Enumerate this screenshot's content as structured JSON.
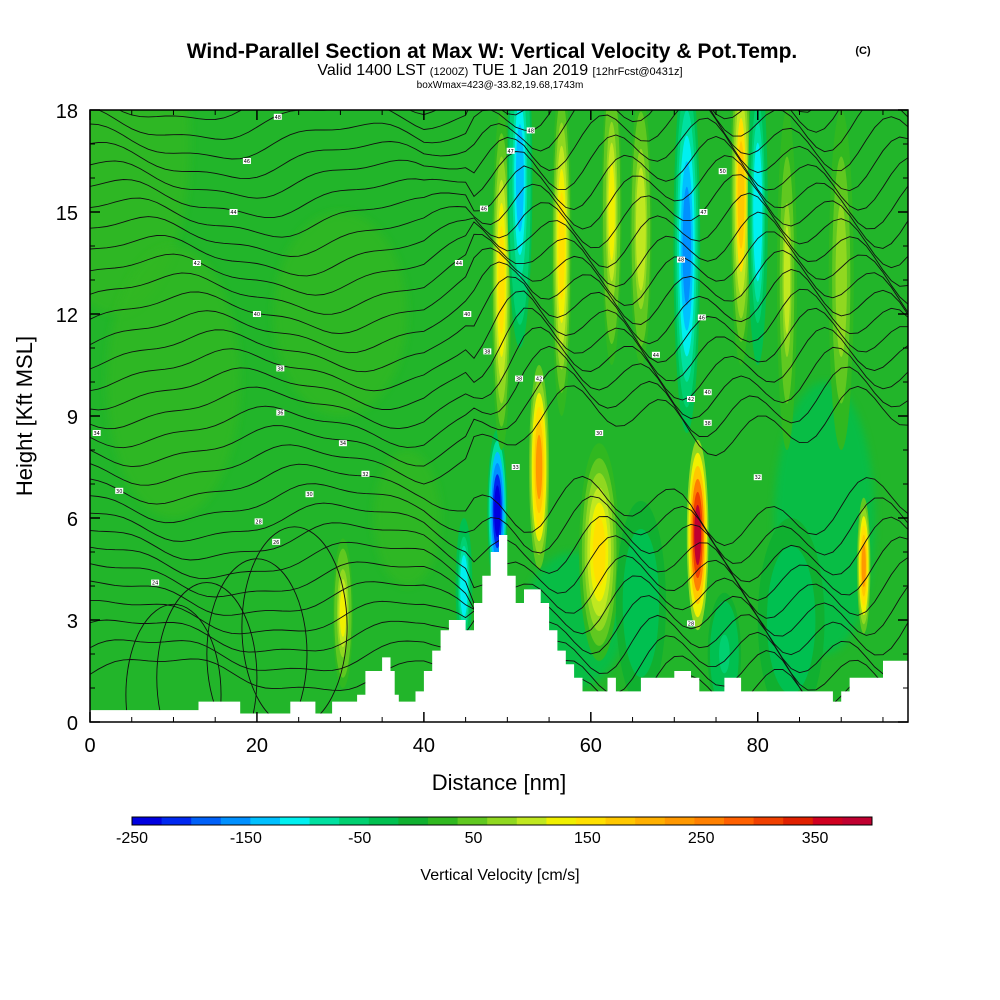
{
  "chart_data": {
    "type": "heatmap",
    "title": "Wind-Parallel Section at Max W: Vertical Velocity & Pot.Temp.",
    "title_suffix": "(C)",
    "subtitle_parts": [
      "Valid 1400 LST",
      "(1200Z)",
      "TUE 1 Jan 2019",
      "[12hrFcst@0431z]"
    ],
    "subsubtitle": "boxWmax=423@-33.82,19.68,1743m",
    "xlabel": "Distance [nm]",
    "ylabel": "Height [Kft MSL]",
    "xlim": [
      0,
      98
    ],
    "ylim": [
      0,
      18
    ],
    "x_ticks": [
      0,
      20,
      40,
      60,
      80
    ],
    "y_ticks": [
      0,
      3,
      6,
      9,
      12,
      15,
      18
    ],
    "colorbar": {
      "label": "Vertical Velocity [cm/s]",
      "min": -250,
      "max": 400,
      "tick_labels": [
        "-250",
        "-150",
        "-50",
        "50",
        "150",
        "250",
        "350"
      ],
      "colors": [
        "#0000e0",
        "#0028f0",
        "#0060f8",
        "#0090ff",
        "#00c0ff",
        "#00f0f0",
        "#00e0a0",
        "#00d070",
        "#00c050",
        "#10b030",
        "#30b820",
        "#60c820",
        "#90d820",
        "#c0e820",
        "#f0f000",
        "#ffe000",
        "#ffc800",
        "#ffb000",
        "#ff9800",
        "#ff8000",
        "#ff6000",
        "#f04000",
        "#e02000",
        "#d00020",
        "#c00030"
      ]
    },
    "terrain": [
      [
        0,
        0.35
      ],
      [
        10,
        0.35
      ],
      [
        13,
        0.35
      ],
      [
        13,
        0.6
      ],
      [
        18,
        0.6
      ],
      [
        18,
        0.25
      ],
      [
        24,
        0.25
      ],
      [
        24,
        0.6
      ],
      [
        27,
        0.6
      ],
      [
        27,
        0.25
      ],
      [
        29,
        0.25
      ],
      [
        29,
        0.6
      ],
      [
        32,
        0.6
      ],
      [
        32,
        0.8
      ],
      [
        33,
        0.8
      ],
      [
        33,
        1.5
      ],
      [
        35,
        1.5
      ],
      [
        35,
        1.9
      ],
      [
        36,
        1.9
      ],
      [
        36,
        1.5
      ],
      [
        36.5,
        1.5
      ],
      [
        36.5,
        0.8
      ],
      [
        37,
        0.8
      ],
      [
        37,
        0.6
      ],
      [
        39,
        0.6
      ],
      [
        39,
        0.9
      ],
      [
        40,
        0.9
      ],
      [
        40,
        1.5
      ],
      [
        41,
        1.5
      ],
      [
        41,
        2.1
      ],
      [
        42,
        2.1
      ],
      [
        42,
        2.7
      ],
      [
        43,
        2.7
      ],
      [
        43,
        3.0
      ],
      [
        45,
        3.0
      ],
      [
        45,
        2.7
      ],
      [
        46,
        2.7
      ],
      [
        46,
        3.5
      ],
      [
        47,
        3.5
      ],
      [
        47,
        4.3
      ],
      [
        48,
        4.3
      ],
      [
        48,
        5.0
      ],
      [
        49,
        5.0
      ],
      [
        49,
        5.5
      ],
      [
        50,
        5.5
      ],
      [
        50,
        4.3
      ],
      [
        51,
        4.3
      ],
      [
        51,
        3.5
      ],
      [
        52,
        3.5
      ],
      [
        52,
        3.9
      ],
      [
        54,
        3.9
      ],
      [
        54,
        3.5
      ],
      [
        55,
        3.5
      ],
      [
        55,
        2.7
      ],
      [
        56,
        2.7
      ],
      [
        56,
        2.1
      ],
      [
        57,
        2.1
      ],
      [
        57,
        1.7
      ],
      [
        58,
        1.7
      ],
      [
        58,
        1.3
      ],
      [
        59,
        1.3
      ],
      [
        59,
        0.9
      ],
      [
        62,
        0.9
      ],
      [
        62,
        1.3
      ],
      [
        63,
        1.3
      ],
      [
        63,
        0.9
      ],
      [
        66,
        0.9
      ],
      [
        66,
        1.3
      ],
      [
        70,
        1.3
      ],
      [
        70,
        1.5
      ],
      [
        72,
        1.5
      ],
      [
        72,
        1.3
      ],
      [
        73,
        1.3
      ],
      [
        73,
        0.9
      ],
      [
        76,
        0.9
      ],
      [
        76,
        1.3
      ],
      [
        78,
        1.3
      ],
      [
        78,
        0.9
      ],
      [
        89,
        0.9
      ],
      [
        89,
        0.6
      ],
      [
        90,
        0.6
      ],
      [
        90,
        0.9
      ],
      [
        91,
        0.9
      ],
      [
        91,
        1.3
      ],
      [
        95,
        1.3
      ],
      [
        95,
        1.8
      ],
      [
        98,
        1.8
      ]
    ],
    "features": [
      {
        "type": "updraft",
        "x": 30.3,
        "y": 3.2,
        "w": 1.2,
        "h": 2.2,
        "peak": 120
      },
      {
        "type": "downdraft",
        "x": 44.8,
        "y": 4.0,
        "w": 1.0,
        "h": 2.0,
        "peak": -120
      },
      {
        "type": "downdraft",
        "x": 48.8,
        "y": 6.2,
        "w": 1.2,
        "h": 2.4,
        "peak": -250
      },
      {
        "type": "updraft",
        "x": 49.3,
        "y": 13.0,
        "w": 1.2,
        "h": 5.0,
        "peak": 160
      },
      {
        "type": "downdraft",
        "x": 51.5,
        "y": 16.0,
        "w": 1.5,
        "h": 5.0,
        "peak": -130
      },
      {
        "type": "updraft",
        "x": 53.8,
        "y": 7.5,
        "w": 1.2,
        "h": 3.0,
        "peak": 230
      },
      {
        "type": "updraft",
        "x": 56.5,
        "y": 14.0,
        "w": 1.2,
        "h": 5.0,
        "peak": 150
      },
      {
        "type": "updraft",
        "x": 61.0,
        "y": 5.0,
        "w": 2.4,
        "h": 3.2,
        "peak": 160
      },
      {
        "type": "updraft",
        "x": 62.5,
        "y": 15.0,
        "w": 1.2,
        "h": 4.5,
        "peak": 120
      },
      {
        "type": "updraft",
        "x": 66.0,
        "y": 14.5,
        "w": 1.3,
        "h": 4.0,
        "peak": 110
      },
      {
        "type": "downdraft",
        "x": 71.5,
        "y": 14.0,
        "w": 1.6,
        "h": 5.5,
        "peak": -160
      },
      {
        "type": "updraft",
        "x": 72.8,
        "y": 5.5,
        "w": 1.3,
        "h": 2.8,
        "peak": 380
      },
      {
        "type": "updraft",
        "x": 78.0,
        "y": 15.5,
        "w": 1.3,
        "h": 5.0,
        "peak": 170
      },
      {
        "type": "downdraft",
        "x": 80.0,
        "y": 15.0,
        "w": 1.2,
        "h": 4.5,
        "peak": -120
      },
      {
        "type": "downdraft",
        "x": 76.0,
        "y": 2.0,
        "w": 2.0,
        "h": 1.8,
        "peak": -50
      },
      {
        "type": "downdraft",
        "x": 66.0,
        "y": 3.5,
        "w": 3.0,
        "h": 3.0,
        "peak": -40
      },
      {
        "type": "downdraft",
        "x": 84.0,
        "y": 3.0,
        "w": 4.0,
        "h": 3.0,
        "peak": -40
      },
      {
        "type": "updraft",
        "x": 92.7,
        "y": 4.6,
        "w": 0.8,
        "h": 2.0,
        "peak": 230
      },
      {
        "type": "updraft",
        "x": 83.5,
        "y": 13.0,
        "w": 1.2,
        "h": 5.0,
        "peak": 90
      },
      {
        "type": "updraft",
        "x": 90.0,
        "y": 13.0,
        "w": 1.5,
        "h": 5.0,
        "peak": 80
      }
    ],
    "theta_levels": [
      24,
      25,
      26,
      27,
      28,
      29,
      30,
      31,
      32,
      33,
      34,
      35,
      36,
      37,
      38,
      39,
      40,
      41,
      42,
      43,
      44,
      45,
      46,
      47,
      48,
      49,
      50,
      51,
      52,
      53,
      54,
      55
    ],
    "contour_labels": [
      {
        "x": 22.5,
        "y": 17.8,
        "text": "48"
      },
      {
        "x": 18.8,
        "y": 16.5,
        "text": "46"
      },
      {
        "x": 17.2,
        "y": 15.0,
        "text": "44"
      },
      {
        "x": 12.8,
        "y": 13.5,
        "text": "42"
      },
      {
        "x": 20.0,
        "y": 12.0,
        "text": "40"
      },
      {
        "x": 22.8,
        "y": 10.4,
        "text": "38"
      },
      {
        "x": 22.8,
        "y": 9.1,
        "text": "36"
      },
      {
        "x": 0.8,
        "y": 8.5,
        "text": "34"
      },
      {
        "x": 30.3,
        "y": 8.2,
        "text": "34"
      },
      {
        "x": 33.0,
        "y": 7.3,
        "text": "32"
      },
      {
        "x": 3.5,
        "y": 6.8,
        "text": "30"
      },
      {
        "x": 26.3,
        "y": 6.7,
        "text": "30"
      },
      {
        "x": 20.2,
        "y": 5.9,
        "text": "28"
      },
      {
        "x": 22.3,
        "y": 5.3,
        "text": "26"
      },
      {
        "x": 7.8,
        "y": 4.1,
        "text": "24"
      },
      {
        "x": 44.2,
        "y": 13.5,
        "text": "44"
      },
      {
        "x": 45.2,
        "y": 12.0,
        "text": "40"
      },
      {
        "x": 47.6,
        "y": 10.9,
        "text": "38"
      },
      {
        "x": 51.4,
        "y": 10.1,
        "text": "38"
      },
      {
        "x": 53.8,
        "y": 10.1,
        "text": "42"
      },
      {
        "x": 47.2,
        "y": 15.1,
        "text": "46"
      },
      {
        "x": 50.4,
        "y": 16.8,
        "text": "47"
      },
      {
        "x": 52.8,
        "y": 17.4,
        "text": "48"
      },
      {
        "x": 51.0,
        "y": 7.5,
        "text": "33"
      },
      {
        "x": 61.0,
        "y": 8.5,
        "text": "30"
      },
      {
        "x": 70.8,
        "y": 13.6,
        "text": "48"
      },
      {
        "x": 73.3,
        "y": 11.9,
        "text": "46"
      },
      {
        "x": 67.8,
        "y": 10.8,
        "text": "44"
      },
      {
        "x": 72.0,
        "y": 9.5,
        "text": "42"
      },
      {
        "x": 74.0,
        "y": 9.7,
        "text": "40"
      },
      {
        "x": 74.0,
        "y": 8.8,
        "text": "38"
      },
      {
        "x": 73.5,
        "y": 15.0,
        "text": "47"
      },
      {
        "x": 75.8,
        "y": 16.2,
        "text": "50"
      },
      {
        "x": 80.0,
        "y": 7.2,
        "text": "32"
      },
      {
        "x": 72.0,
        "y": 2.9,
        "text": "28"
      }
    ]
  }
}
